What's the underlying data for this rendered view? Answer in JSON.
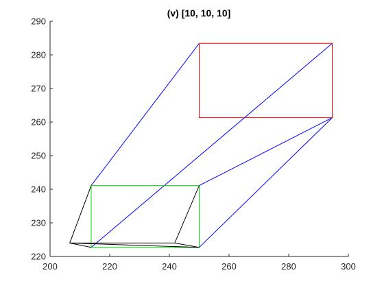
{
  "chart_data": {
    "type": "line",
    "title": "(v) [10, 10, 10]",
    "xlabel": "",
    "ylabel": "",
    "xlim": [
      200,
      300
    ],
    "ylim": [
      220,
      290
    ],
    "xticks": [
      200,
      220,
      240,
      260,
      280,
      300
    ],
    "yticks": [
      220,
      230,
      240,
      250,
      260,
      270,
      280,
      290
    ],
    "grid": false,
    "legend": "none",
    "series": [
      {
        "color": "#0000ff",
        "segments": [
          {
            "x": [
              213.8,
              250
            ],
            "y": [
              241.1,
              283.4
            ]
          },
          {
            "x": [
              213.8,
              294.6
            ],
            "y": [
              222.7,
              283.4
            ]
          },
          {
            "x": [
              250,
              294.6
            ],
            "y": [
              241.1,
              261.3
            ]
          },
          {
            "x": [
              250,
              294.6
            ],
            "y": [
              222.7,
              261.3
            ]
          }
        ]
      },
      {
        "color": "#ff0000",
        "segments": [
          {
            "x": [
              250,
              294.6,
              294.6,
              250,
              250
            ],
            "y": [
              283.4,
              283.4,
              261.3,
              261.3,
              283.4
            ]
          }
        ]
      },
      {
        "color": "#00dd00",
        "segments": [
          {
            "x": [
              213.8,
              250,
              250,
              213.8,
              213.8
            ],
            "y": [
              241.1,
              241.1,
              222.7,
              222.7,
              241.1
            ]
          }
        ]
      },
      {
        "color": "#000000",
        "segments": [
          {
            "x": [
              213.8,
              206.6,
              241.8,
              250
            ],
            "y": [
              241.1,
              224.0,
              224.0,
              241.1
            ]
          },
          {
            "x": [
              206.6,
              213.8
            ],
            "y": [
              224.0,
              222.7
            ]
          },
          {
            "x": [
              206.6,
              250
            ],
            "y": [
              224.0,
              222.7
            ]
          },
          {
            "x": [
              241.8,
              250
            ],
            "y": [
              224.0,
              222.7
            ]
          }
        ]
      }
    ]
  }
}
